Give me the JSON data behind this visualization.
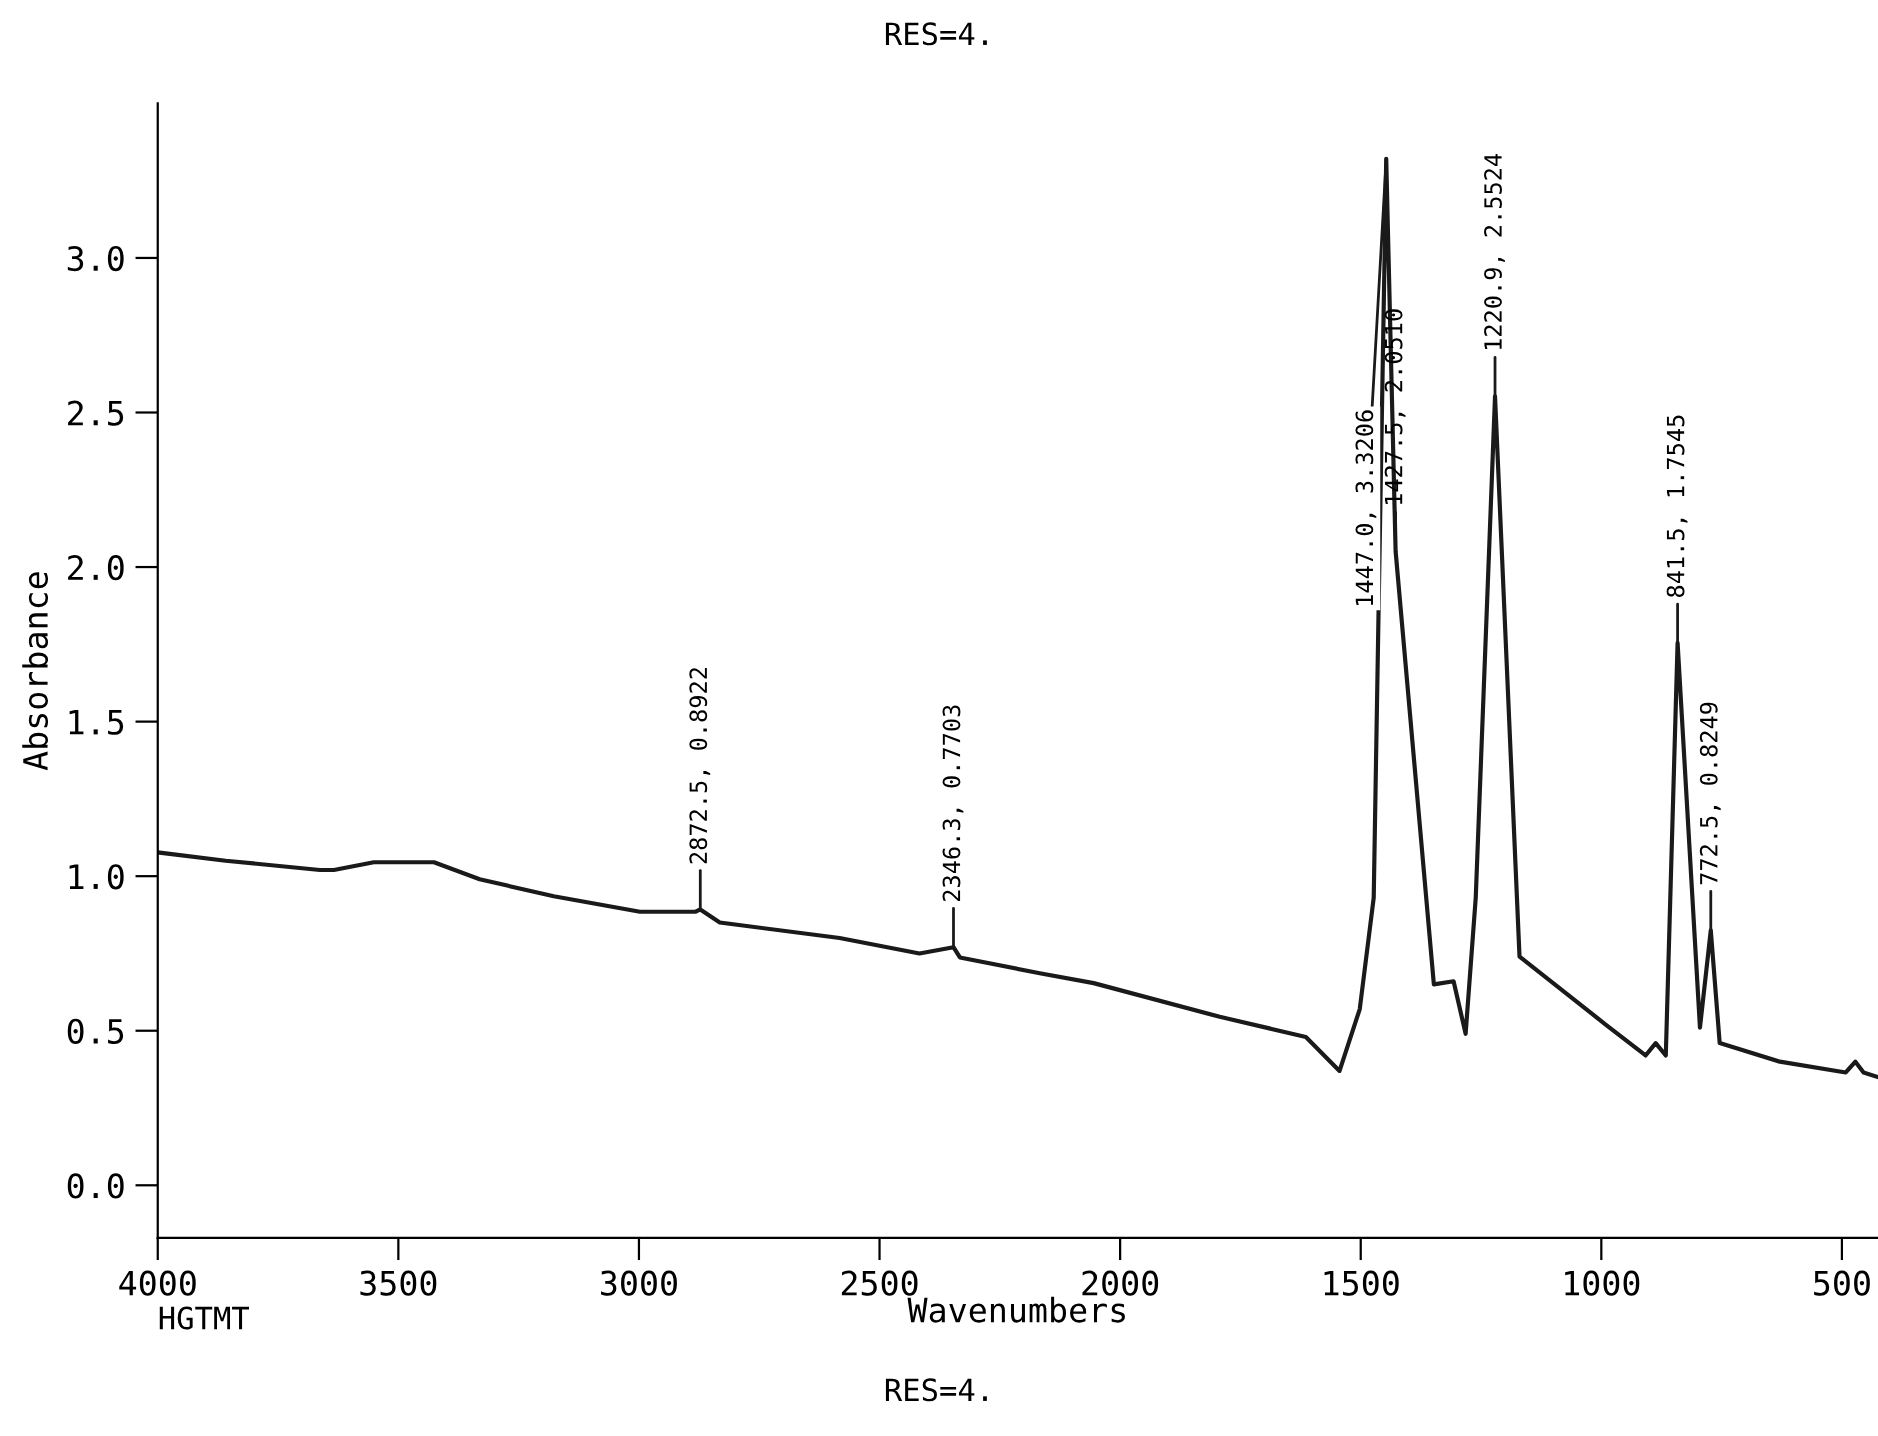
{
  "chart_data": {
    "type": "line",
    "xlabel": "Wavenumbers",
    "ylabel": "Absorbance",
    "x": [
      4000,
      3859,
      3663,
      3634,
      3551,
      3426,
      3331,
      3177,
      2998,
      2944,
      2882,
      2872.5,
      2832,
      2583,
      2417,
      2346.3,
      2333,
      2167,
      2055,
      1793,
      1614,
      1544,
      1502,
      1473,
      1447.0,
      1427.5,
      1348,
      1307,
      1282,
      1261,
      1220.9,
      1170,
      991,
      908,
      887,
      866,
      841.5,
      795,
      772.5,
      754,
      629,
      492,
      472,
      455,
      425
    ],
    "series": [
      {
        "color": "#1a1a1a",
        "values": [
          1.077,
          1.05,
          1.02,
          1.02,
          1.045,
          1.045,
          0.99,
          0.935,
          0.885,
          0.885,
          0.885,
          0.8922,
          0.85,
          0.8,
          0.75,
          0.7703,
          0.737,
          0.686,
          0.654,
          0.545,
          0.48,
          0.37,
          0.57,
          0.93,
          3.3206,
          2.051,
          0.65,
          0.66,
          0.49,
          0.93,
          2.5524,
          0.74,
          0.52,
          0.42,
          0.46,
          0.42,
          1.7545,
          0.51,
          0.8249,
          0.46,
          0.4,
          0.365,
          0.4,
          0.365,
          0.35
        ]
      }
    ],
    "xlim": [
      4000,
      425
    ],
    "xticks": [
      4000,
      3500,
      3000,
      2500,
      2000,
      1500,
      1000,
      500
    ],
    "ylim": [
      -0.17,
      3.5
    ],
    "yticks": [
      {
        "value": 0,
        "label": "0.0"
      },
      0.5,
      {
        "value": 1,
        "label": "1.0"
      },
      1.5,
      {
        "value": 2,
        "label": "2.0"
      },
      2.5,
      {
        "value": 3,
        "label": "3.0"
      }
    ],
    "grid": false,
    "legend": false,
    "marker": "none",
    "line_style": "solid",
    "annotations": [
      "RES=4.",
      "HGTMT",
      "RES=4.",
      {
        "text": "2872.5, 0.8922",
        "x": 2872.5,
        "y": 0.8922
      },
      {
        "text": "2346.3, 0.7703",
        "x": 2346.3,
        "y": 0.7703
      },
      {
        "text": "1447.0, 3.3206",
        "x": 1447.0,
        "y": 3.3206
      },
      {
        "text": "1427.5, 2.0510",
        "x": 1427.5,
        "y": 2.051
      },
      {
        "text": "1220.9, 2.5524",
        "x": 1220.9,
        "y": 2.5524
      },
      {
        "text": "841.5, 1.7545",
        "x": 841.5,
        "y": 1.7545
      },
      {
        "text": "772.5, 0.8249",
        "x": 772.5,
        "y": 0.8249
      }
    ]
  }
}
